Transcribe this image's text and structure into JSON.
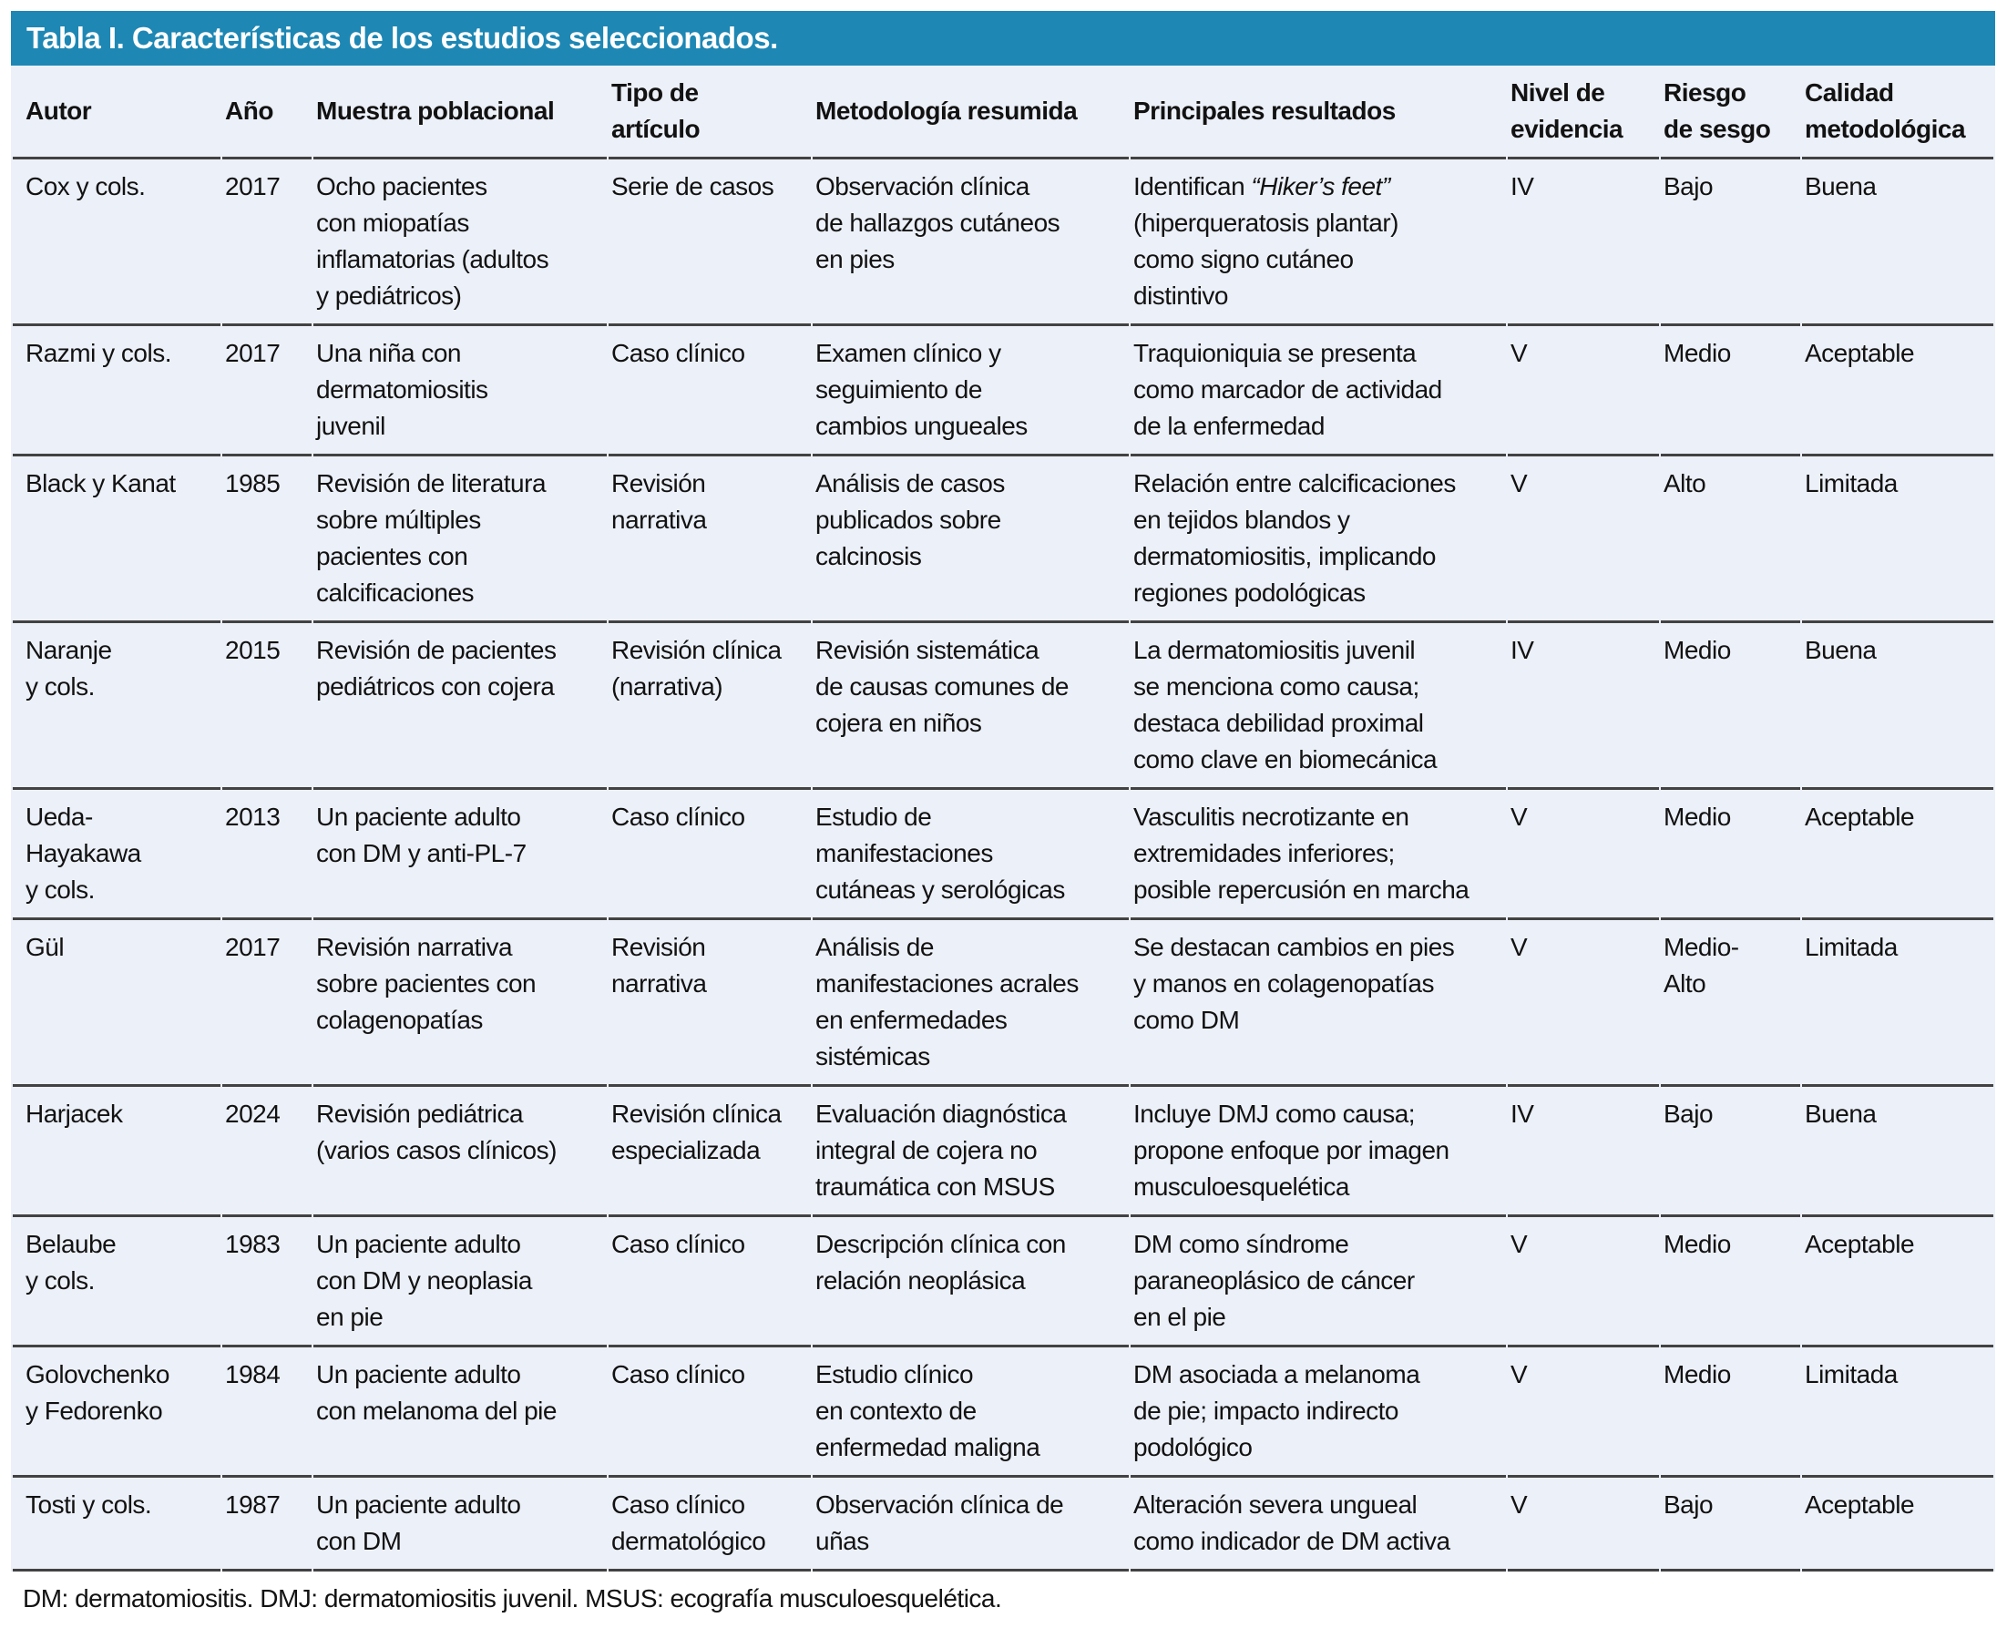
{
  "title": "Tabla I. Características de los estudios seleccionados.",
  "colors": {
    "title_bar_bg": "#1e87b4",
    "title_text": "#ffffff",
    "table_body_bg": "#ecf0f8",
    "separator_line": "#424242",
    "body_text": "#121212"
  },
  "column_keys": [
    "autor",
    "ano",
    "muestra",
    "tipo",
    "metodologia",
    "resultados",
    "nivel",
    "riesgo",
    "calidad"
  ],
  "columns": [
    "Autor",
    "Año",
    "Muestra poblacional",
    "Tipo de\nartículo",
    "Metodología resumida",
    "Principales resultados",
    "Nivel de\nevidencia",
    "Riesgo\nde sesgo",
    "Calidad\nmetodológica"
  ],
  "rows": [
    {
      "cells": [
        "Cox y cols.",
        "2017",
        "Ocho pacientes\ncon miopatías\ninflamatorias (adultos\ny pediátricos)",
        "Serie de casos",
        "Observación clínica\nde hallazgos cutáneos\nen pies",
        [
          {
            "text": "Identifican "
          },
          {
            "text": "“Hiker’s feet”",
            "italic": true
          },
          {
            "text": "\n(hiperqueratosis plantar)\ncomo signo cutáneo\ndistintivo"
          }
        ],
        "IV",
        "Bajo",
        "Buena"
      ]
    },
    {
      "cells": [
        "Razmi y cols.",
        "2017",
        "Una niña con\ndermatomiositis\njuvenil",
        "Caso clínico",
        "Examen clínico y\nseguimiento de\ncambios ungueales",
        "Traquioniquia se presenta\ncomo marcador de actividad\nde la enfermedad",
        "V",
        "Medio",
        "Aceptable"
      ]
    },
    {
      "cells": [
        "Black y Kanat",
        "1985",
        "Revisión de literatura\nsobre múltiples\npacientes con\ncalcificaciones",
        "Revisión\nnarrativa",
        "Análisis de casos\npublicados sobre\ncalcinosis",
        "Relación entre calcificaciones\nen tejidos blandos y\ndermatomiositis, implicando\nregiones podológicas",
        "V",
        "Alto",
        "Limitada"
      ]
    },
    {
      "cells": [
        "Naranje\ny cols.",
        "2015",
        "Revisión de pacientes\npediátricos con cojera",
        "Revisión clínica\n(narrativa)",
        "Revisión sistemática\nde causas comunes de\ncojera en niños",
        "La dermatomiositis juvenil\nse menciona como causa;\ndestaca debilidad proximal\ncomo clave en biomecánica",
        "IV",
        "Medio",
        "Buena"
      ]
    },
    {
      "cells": [
        "Ueda-\nHayakawa\ny cols.",
        "2013",
        "Un paciente adulto\ncon DM y anti-PL-7",
        "Caso clínico",
        "Estudio de\nmanifestaciones\ncutáneas y serológicas",
        "Vasculitis necrotizante en\nextremidades inferiores;\nposible repercusión en marcha",
        "V",
        "Medio",
        "Aceptable"
      ]
    },
    {
      "cells": [
        "Gül",
        "2017",
        "Revisión narrativa\nsobre pacientes con\ncolagenopatías",
        "Revisión\nnarrativa",
        "Análisis de\nmanifestaciones acrales\nen enfermedades\nsistémicas",
        "Se destacan cambios en pies\ny manos en colagenopatías\ncomo DM",
        "V",
        "Medio-\nAlto",
        "Limitada"
      ]
    },
    {
      "cells": [
        "Harjacek",
        "2024",
        "Revisión pediátrica\n(varios casos clínicos)",
        "Revisión clínica\nespecializada",
        "Evaluación diagnóstica\nintegral de cojera no\ntraumática con MSUS",
        "Incluye DMJ como causa;\npropone enfoque por imagen\nmusculoesquelética",
        "IV",
        "Bajo",
        "Buena"
      ]
    },
    {
      "cells": [
        "Belaube\ny cols.",
        "1983",
        "Un paciente adulto\ncon DM y neoplasia\nen pie",
        "Caso clínico",
        "Descripción clínica con\nrelación neoplásica",
        "DM como síndrome\nparaneoplásico de cáncer\nen el pie",
        "V",
        "Medio",
        "Aceptable"
      ]
    },
    {
      "cells": [
        "Golovchenko\ny Fedorenko",
        "1984",
        "Un paciente adulto\ncon melanoma del pie",
        "Caso clínico",
        "Estudio clínico\nen contexto de\nenfermedad maligna",
        "DM asociada a melanoma\nde pie; impacto indirecto\npodológico",
        "V",
        "Medio",
        "Limitada"
      ]
    },
    {
      "cells": [
        "Tosti y cols.",
        "1987",
        "Un paciente adulto\ncon DM",
        "Caso clínico\ndermatológico",
        "Observación clínica de\nuñas",
        "Alteración severa ungueal\ncomo indicador de DM activa",
        "V",
        "Bajo",
        "Aceptable"
      ]
    }
  ],
  "footnote": "DM: dermatomiositis. DMJ: dermatomiositis juvenil. MSUS: ecografía musculoesquelética."
}
